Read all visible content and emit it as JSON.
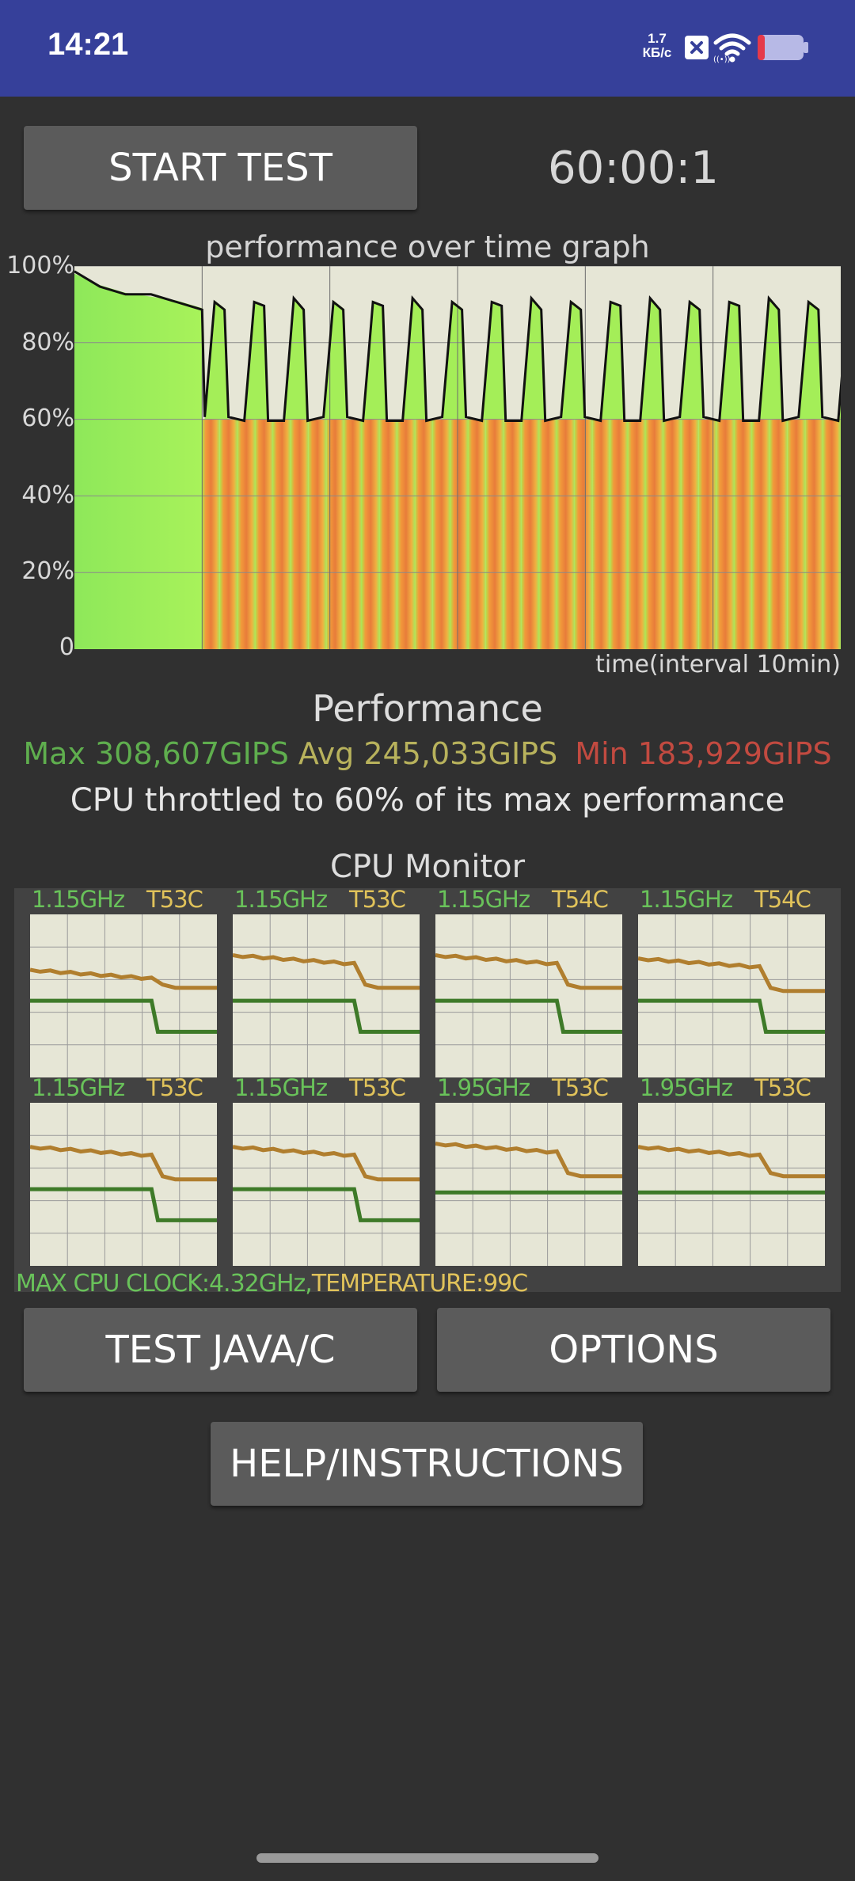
{
  "status_bar": {
    "time": "14:21",
    "net_speed": "1.7",
    "net_unit": "КБ/с",
    "icons": [
      "close-box-icon",
      "wifi-icon",
      "battery-icon"
    ]
  },
  "controls": {
    "start_test_label": "START TEST",
    "timer": "60:00:1",
    "test_java_label": "TEST JAVA/C",
    "options_label": "OPTIONS",
    "help_label": "HELP/INSTRUCTIONS"
  },
  "chart_data": {
    "type": "area",
    "title": "performance over time graph",
    "xlabel": "time(interval 10min)",
    "ylabel": "",
    "y_tick_labels": [
      "100%",
      "80%",
      "60%",
      "40%",
      "20%",
      "0"
    ],
    "ylim": [
      0,
      100
    ],
    "x_interval_minutes": 10,
    "x_range_minutes": [
      0,
      60
    ],
    "grid": true,
    "phase1": {
      "x": [
        0,
        2,
        4,
        6,
        8,
        10
      ],
      "y": [
        98,
        95,
        93,
        92,
        91,
        89
      ]
    },
    "pulses": {
      "count": 18,
      "period_minutes": 3.1,
      "high": 91,
      "low": 60,
      "start_minutes": 10.2,
      "end_minutes": 60
    }
  },
  "performance": {
    "title": "Performance",
    "max": "Max 308,607GIPS",
    "avg": "Avg 245,033GIPS",
    "min": "Min 183,929GIPS",
    "throttle": "CPU throttled to 60% of its max performance",
    "colors": {
      "max": "#5fae4e",
      "avg": "#b8b25c",
      "min": "#c24a40"
    }
  },
  "cpu_monitor": {
    "title": "CPU Monitor",
    "cores": [
      {
        "freq": "1.15GHz",
        "temp": "T53C",
        "freq_start": 0.47,
        "freq_end": 0.28,
        "temp_start": 0.66,
        "temp_end": 0.55,
        "drop_pos": 0.65
      },
      {
        "freq": "1.15GHz",
        "temp": "T53C",
        "freq_start": 0.47,
        "freq_end": 0.28,
        "temp_start": 0.75,
        "temp_end": 0.55,
        "drop_pos": 0.65
      },
      {
        "freq": "1.15GHz",
        "temp": "T54C",
        "freq_start": 0.47,
        "freq_end": 0.28,
        "temp_start": 0.75,
        "temp_end": 0.55,
        "drop_pos": 0.65
      },
      {
        "freq": "1.15GHz",
        "temp": "T54C",
        "freq_start": 0.47,
        "freq_end": 0.28,
        "temp_start": 0.73,
        "temp_end": 0.53,
        "drop_pos": 0.65
      },
      {
        "freq": "1.15GHz",
        "temp": "T53C",
        "freq_start": 0.47,
        "freq_end": 0.28,
        "temp_start": 0.73,
        "temp_end": 0.53,
        "drop_pos": 0.65
      },
      {
        "freq": "1.15GHz",
        "temp": "T53C",
        "freq_start": 0.47,
        "freq_end": 0.28,
        "temp_start": 0.73,
        "temp_end": 0.53,
        "drop_pos": 0.65
      },
      {
        "freq": "1.95GHz",
        "temp": "T53C",
        "freq_start": 0.45,
        "freq_end": 0.45,
        "temp_start": 0.75,
        "temp_end": 0.55,
        "drop_pos": 0.65
      },
      {
        "freq": "1.95GHz",
        "temp": "T53C",
        "freq_start": 0.45,
        "freq_end": 0.45,
        "temp_start": 0.73,
        "temp_end": 0.55,
        "drop_pos": 0.65
      }
    ],
    "max_clock": "MAX CPU CLOCK:4.32GHz,",
    "temperature": "TEMPERATURE:99C"
  }
}
